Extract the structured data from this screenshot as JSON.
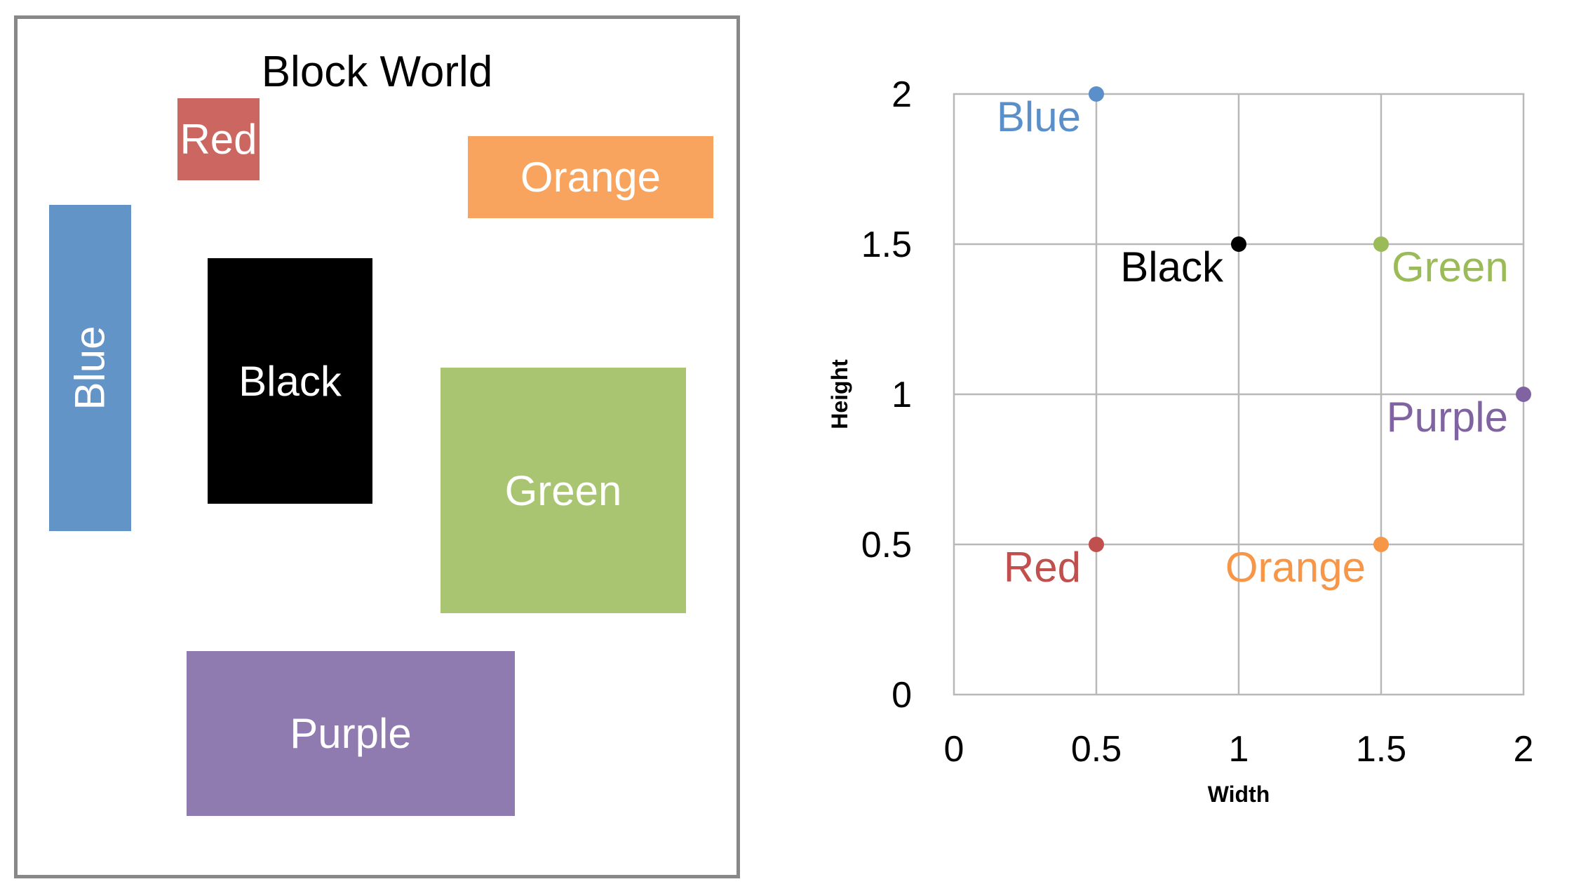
{
  "world": {
    "title": "Block World",
    "blocks": [
      {
        "key": "red",
        "label": "Red",
        "color": "#CC6660"
      },
      {
        "key": "orange",
        "label": "Orange",
        "color": "#F8A45E"
      },
      {
        "key": "blue",
        "label": "Blue",
        "color": "#6394C8"
      },
      {
        "key": "black",
        "label": "Black",
        "color": "#000000"
      },
      {
        "key": "green",
        "label": "Green",
        "color": "#A9C572"
      },
      {
        "key": "purple",
        "label": "Purple",
        "color": "#907BB0"
      }
    ]
  },
  "chart_data": {
    "type": "scatter",
    "xlabel": "Width",
    "ylabel": "Height",
    "xlim": [
      0,
      2
    ],
    "ylim": [
      0,
      2
    ],
    "xticks": [
      "0",
      "0.5",
      "1",
      "1.5",
      "2"
    ],
    "yticks": [
      "0",
      "0.5",
      "1",
      "1.5",
      "2"
    ],
    "grid": true,
    "points": [
      {
        "label": "Blue",
        "x": 0.5,
        "y": 2,
        "color": "#5B8FC9",
        "anchor": "lower-left"
      },
      {
        "label": "Black",
        "x": 1,
        "y": 1.5,
        "color": "#000000",
        "anchor": "lower-left"
      },
      {
        "label": "Green",
        "x": 1.5,
        "y": 1.5,
        "color": "#9BBB59",
        "anchor": "lower-right"
      },
      {
        "label": "Purple",
        "x": 2,
        "y": 1,
        "color": "#8064A2",
        "anchor": "lower-left"
      },
      {
        "label": "Red",
        "x": 0.5,
        "y": 0.5,
        "color": "#C0504D",
        "anchor": "lower-left"
      },
      {
        "label": "Orange",
        "x": 1.5,
        "y": 0.5,
        "color": "#F79646",
        "anchor": "lower-left"
      }
    ]
  }
}
